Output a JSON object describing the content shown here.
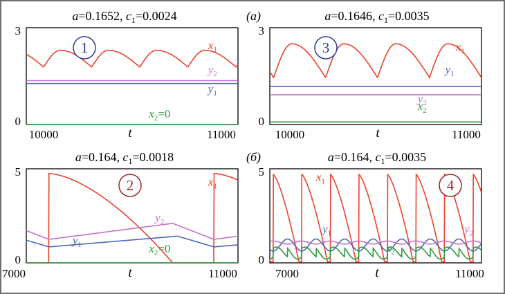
{
  "figure": {
    "panel_labels": [
      "(a)",
      "(б)"
    ]
  },
  "colors": {
    "x1": "#e8432a",
    "y1": "#4a66b8",
    "y2": "#c571c9",
    "x2": "#2a9a3a",
    "badge_blue": "#2a3b8f",
    "badge_red": "#a02222"
  },
  "chart_data": [
    {
      "type": "line",
      "title": "a=0.1652, c1=0.0024",
      "title_parts": {
        "a": "0.1652",
        "c1": "0.0024"
      },
      "badge": "1",
      "xlabel": "t",
      "xlim": [
        9950,
        11050
      ],
      "ylim": [
        0,
        3
      ],
      "xticks": [
        10000,
        11000
      ],
      "yticks": [
        0,
        3
      ],
      "series": [
        {
          "name": "x1",
          "label": "x1",
          "kind": "periodic",
          "base": 1.78,
          "amp": 0.52,
          "period": 250,
          "phase0": 10040,
          "rise": 0.35
        },
        {
          "name": "y2",
          "label": "y2",
          "kind": "flat",
          "value": 1.36
        },
        {
          "name": "y1",
          "label": "y1",
          "kind": "flat",
          "value": 1.27
        },
        {
          "name": "x2",
          "label": "x2=0",
          "kind": "flat",
          "value": 0.0
        }
      ]
    },
    {
      "type": "line",
      "title": "a=0.1646, c1=0.0035",
      "title_parts": {
        "a": "0.1646",
        "c1": "0.0035"
      },
      "badge": "3",
      "xlabel": "t",
      "xlim": [
        9950,
        11050
      ],
      "ylim": [
        0,
        3
      ],
      "xticks": [
        10000,
        11000
      ],
      "yticks": [
        0,
        3
      ],
      "series": [
        {
          "name": "x1",
          "label": "x1",
          "kind": "periodic",
          "base": 1.45,
          "amp": 1.05,
          "period": 270,
          "phase0": 9970,
          "rise": 0.35
        },
        {
          "name": "y1",
          "label": "y1",
          "kind": "flat",
          "value": 1.18
        },
        {
          "name": "y2",
          "label": "y2",
          "kind": "flat",
          "value": 0.92
        },
        {
          "name": "x2",
          "label": "x2",
          "kind": "flat",
          "value": 0.08
        }
      ]
    },
    {
      "type": "line",
      "title": "a=0.164, c1=0.0018",
      "title_parts": {
        "a": "0.164",
        "c1": "0.0018"
      },
      "badge": "2",
      "xlabel": "t",
      "xlim": [
        6750,
        11050
      ],
      "ylim": [
        0,
        5
      ],
      "xticks": [
        7000,
        11000
      ],
      "yticks": [
        0,
        5
      ],
      "series": [
        {
          "name": "x1",
          "label": "x1",
          "kind": "relax",
          "peak": 4.75,
          "low": 0.0,
          "period": 3350,
          "spikes": [
            7210,
            10560
          ],
          "decay": 0.75,
          "power": 1.6
        },
        {
          "name": "y2",
          "label": "y2",
          "kind": "saw",
          "lo": 1.25,
          "hi": 2.1,
          "period": 3350,
          "spikes": [
            7210,
            10560
          ],
          "riseFrac": 0.75
        },
        {
          "name": "y1",
          "label": "y1",
          "kind": "saw",
          "lo": 0.85,
          "hi": 1.42,
          "period": 3350,
          "spikes": [
            7210,
            10560
          ],
          "riseFrac": 0.78
        },
        {
          "name": "x2",
          "label": "x2=0",
          "kind": "flat",
          "value": 0.0
        }
      ]
    },
    {
      "type": "line",
      "title": "a=0.164, c1=0.0035",
      "title_parts": {
        "a": "0.164",
        "c1": "0.0035"
      },
      "badge": "4",
      "xlabel": "t",
      "xlim": [
        6750,
        11050
      ],
      "ylim": [
        0,
        5
      ],
      "xticks": [
        7000,
        11000
      ],
      "yticks": [
        0,
        5
      ],
      "series": [
        {
          "name": "x1",
          "label": "x1",
          "kind": "relax",
          "peak": 4.7,
          "low": 0.05,
          "period": 580,
          "spikes": [
            6820,
            7400,
            7980,
            8560,
            9140,
            9720,
            10300,
            10880
          ],
          "decay": 0.9,
          "power": 1.4
        },
        {
          "name": "y1",
          "label": "y1",
          "kind": "wave",
          "mid": 0.95,
          "amp": 0.32,
          "period": 580,
          "phase0": 6820
        },
        {
          "name": "y2",
          "label": "y2",
          "kind": "flat_wiggle",
          "mid": 1.08,
          "amp": 0.08,
          "period": 580,
          "phase0": 6820
        },
        {
          "name": "x2",
          "label": "x2",
          "kind": "dip",
          "mid": 0.55,
          "amp": 0.45,
          "period": 580,
          "phase0": 6820
        }
      ]
    }
  ]
}
